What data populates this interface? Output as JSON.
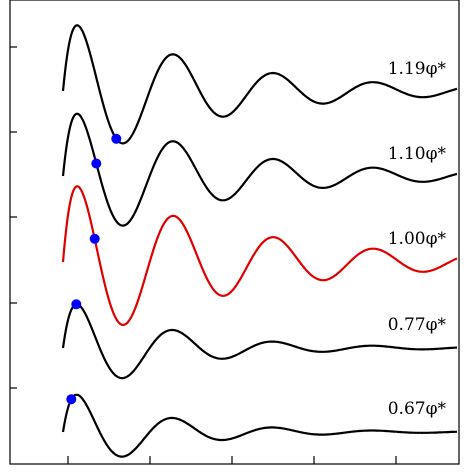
{
  "chart_data": {
    "type": "line",
    "title": "",
    "xlabel": "",
    "ylabel": "",
    "grid": false,
    "legend": "none",
    "series": [
      {
        "label_text": "1.19φ*",
        "color": "#000000",
        "marker_color": "#0000ff",
        "peak": 0.95,
        "r": 0.3,
        "k": 0.6,
        "decay": 0.54,
        "marker_r": 0.62
      },
      {
        "label_text": "1.10φ*",
        "color": "#000000",
        "marker_color": "#0000ff",
        "peak": 0.9,
        "r": 0.3,
        "k": 0.6,
        "decay": 0.54,
        "marker_r": 0.5
      },
      {
        "label_text": "1.00φ*",
        "color": "#e00000",
        "marker_color": "#0000ff",
        "peak": 1.08,
        "r": 0.3,
        "k": 0.6,
        "decay": 0.47,
        "marker_r": 0.49
      },
      {
        "label_text": "0.77φ*",
        "color": "#000000",
        "marker_color": "#0000ff",
        "peak": 0.66,
        "r": 0.3,
        "k": 0.6,
        "decay": 0.78,
        "marker_r": 0.38
      },
      {
        "label_text": "0.67φ*",
        "color": "#000000",
        "marker_color": "#0000ff",
        "peak": 0.57,
        "r": 0.3,
        "k": 0.6,
        "decay": 0.85,
        "marker_r": 0.35
      }
    ],
    "colors": {
      "axis": "#000000",
      "highlight": "#e00000",
      "marker": "#0000ff"
    }
  }
}
